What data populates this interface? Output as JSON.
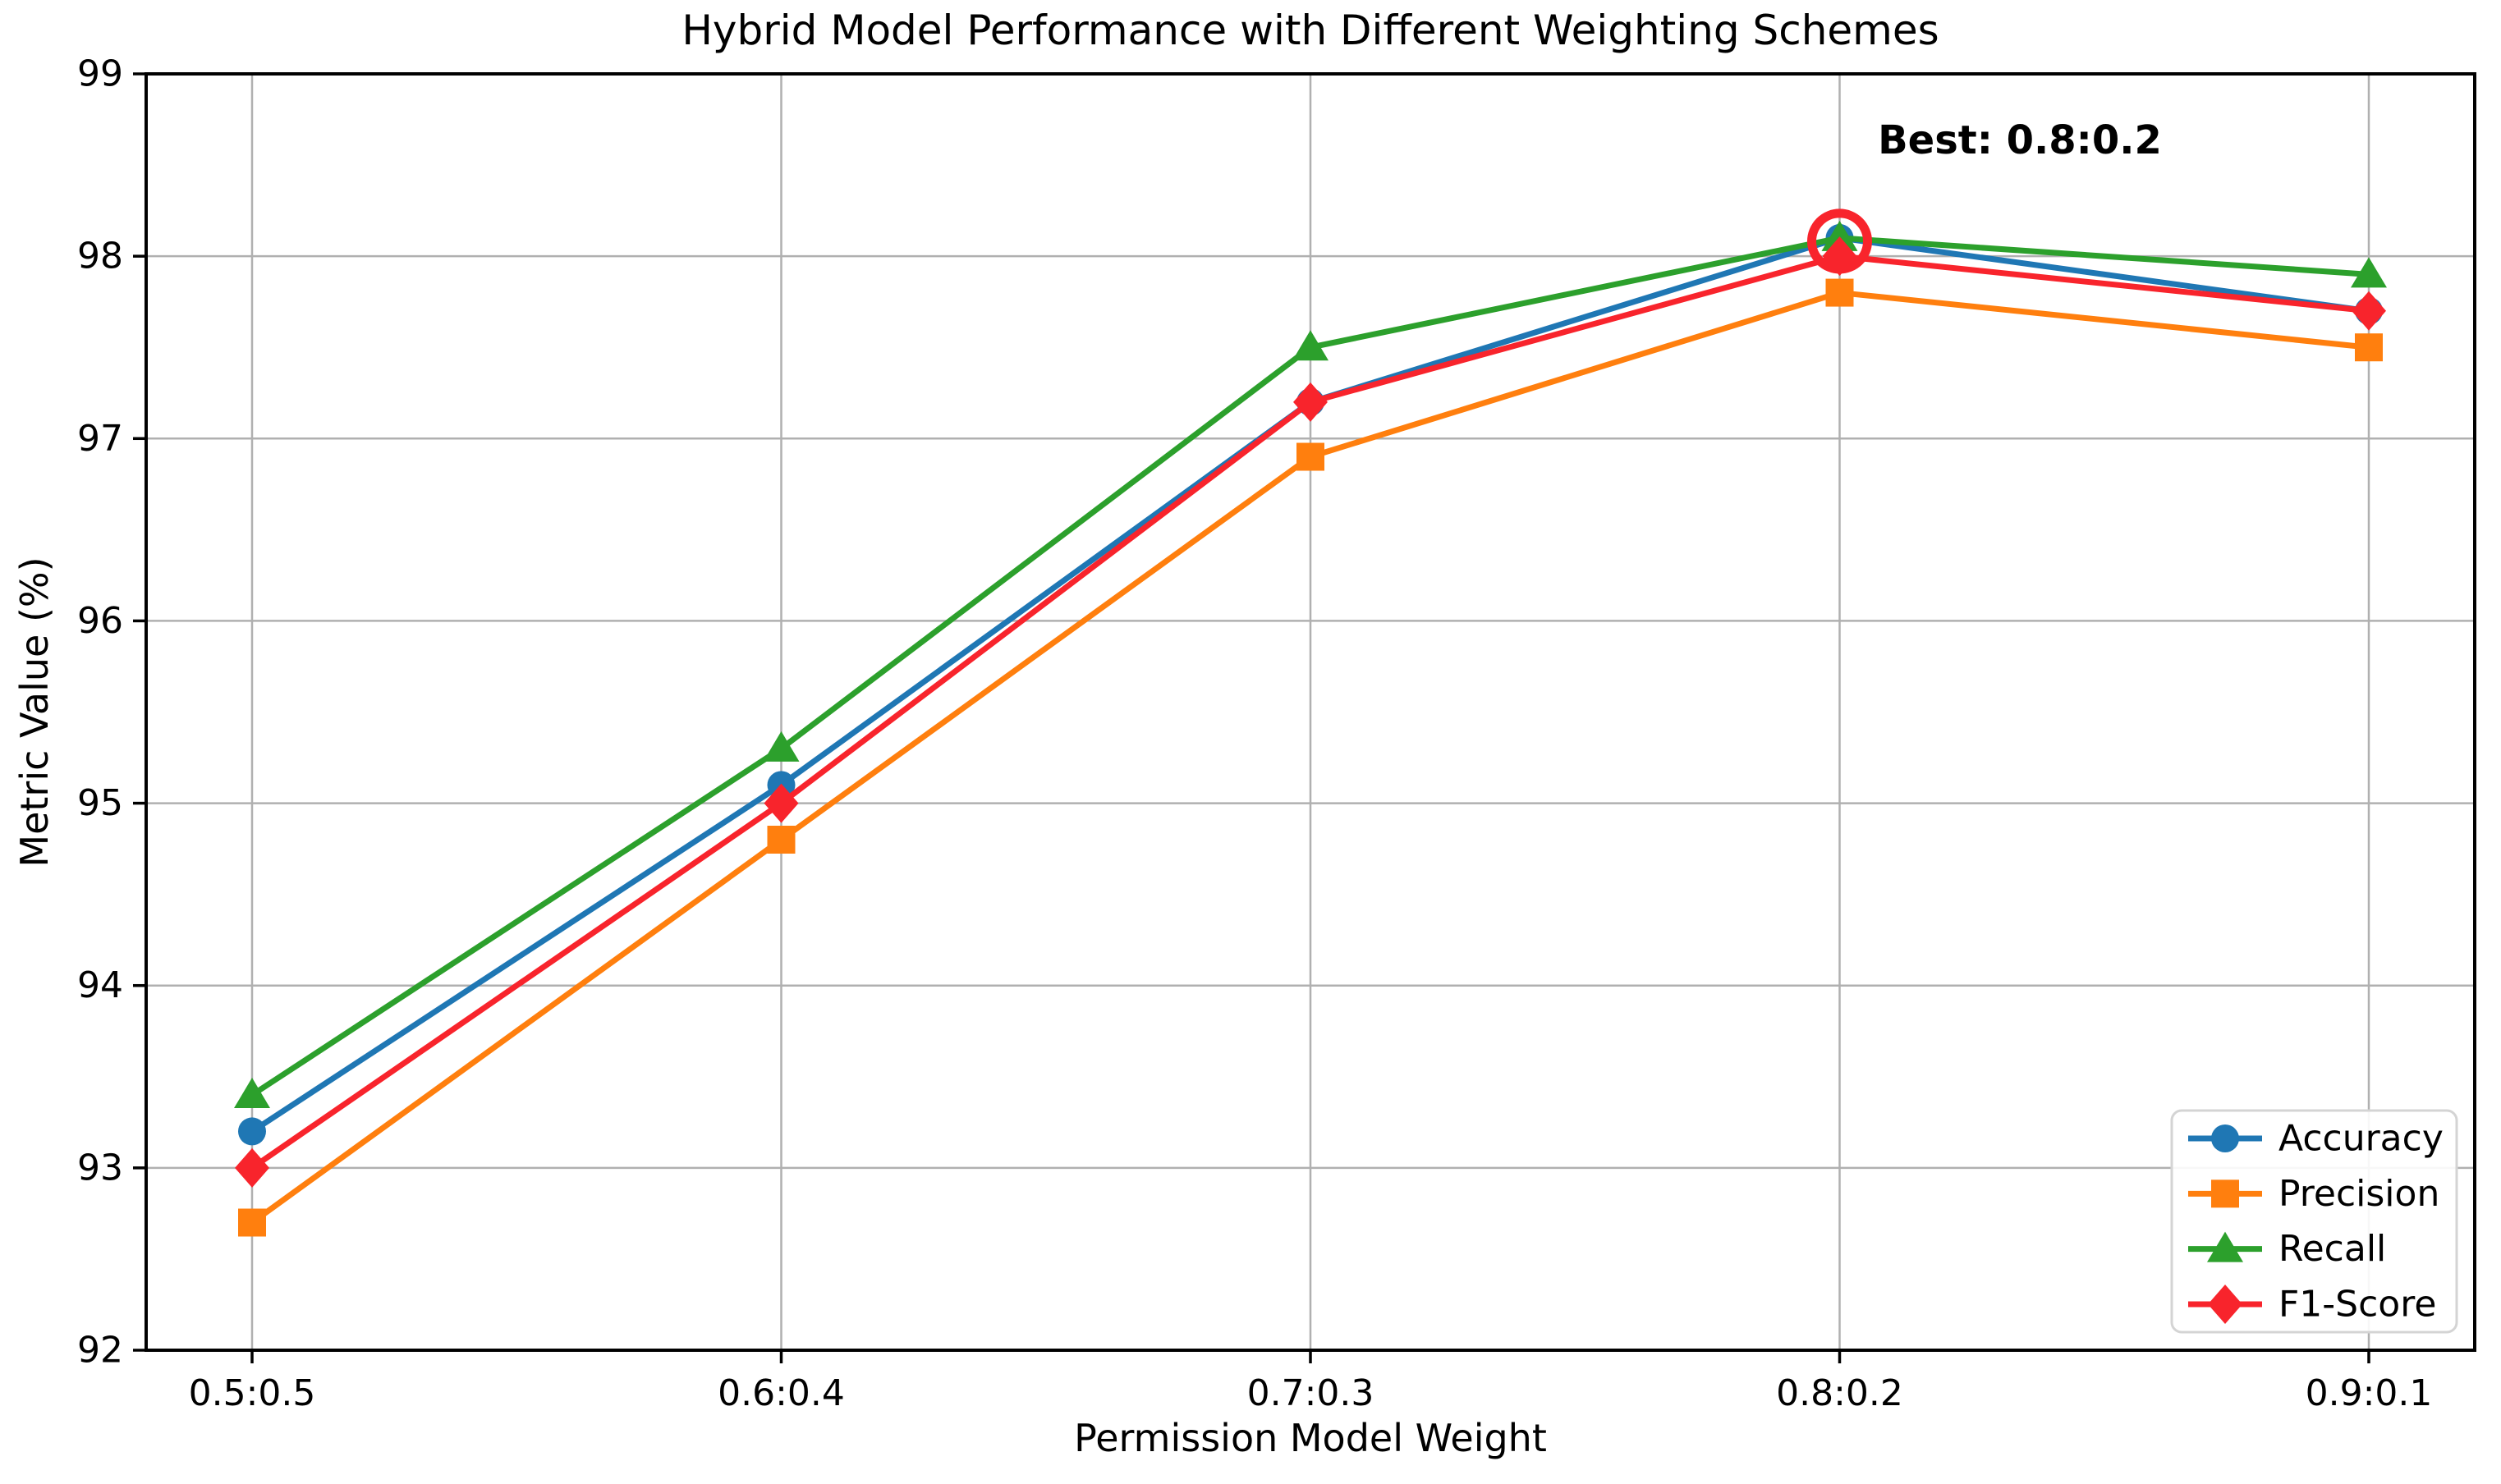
{
  "chart_data": {
    "type": "line",
    "title": "Hybrid Model Performance with Different Weighting Schemes",
    "xlabel": "Permission Model Weight",
    "ylabel": "Metric Value (%)",
    "categories": [
      "0.5:0.5",
      "0.6:0.4",
      "0.7:0.3",
      "0.8:0.2",
      "0.9:0.1"
    ],
    "series": [
      {
        "name": "Accuracy",
        "marker": "circle",
        "color": "#1f77b4",
        "values": [
          93.2,
          95.1,
          97.2,
          98.1,
          97.7
        ]
      },
      {
        "name": "Precision",
        "marker": "square",
        "color": "#ff7f0e",
        "values": [
          92.7,
          94.8,
          96.9,
          97.8,
          97.5
        ]
      },
      {
        "name": "Recall",
        "marker": "triangle-up",
        "color": "#2ca02c",
        "values": [
          93.4,
          95.3,
          97.5,
          98.1,
          97.9
        ]
      },
      {
        "name": "F1-Score",
        "marker": "diamond",
        "color": "#f8242c",
        "values": [
          93.0,
          95.0,
          97.2,
          98.0,
          97.7
        ]
      }
    ],
    "ylim": [
      92,
      99
    ],
    "yticks": [
      92,
      93,
      94,
      95,
      96,
      97,
      98,
      99
    ],
    "grid": true,
    "grid_color": "#b0b0b0",
    "legend_position": "lower right",
    "annotation": {
      "text": "Best: 0.8:0.2",
      "target_category": "0.8:0.2",
      "target_category_index": 3,
      "circled_value": 98.1,
      "circle_color": "#f8242c"
    }
  }
}
